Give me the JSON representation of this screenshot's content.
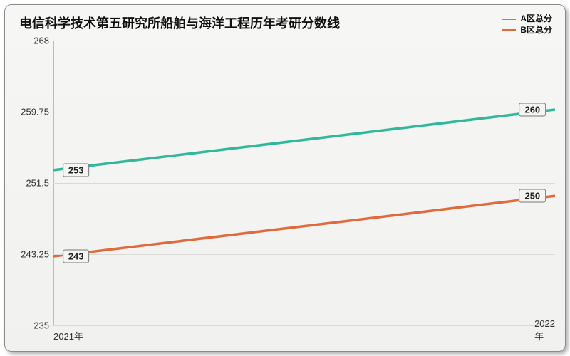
{
  "chart": {
    "type": "line",
    "title": "电信科学技术第五研究所船舶与海洋工程历年考研分数线",
    "title_fontsize": 18,
    "background_gradient_top": "#f6f6f4",
    "background_gradient_bottom": "#f1f1ef",
    "border_color": "#8a8a8a",
    "grid_color": "#d9d9d6",
    "text_color": "#333333",
    "y": {
      "min": 235,
      "max": 268,
      "ticks": [
        235,
        243.25,
        251.5,
        259.75,
        268
      ],
      "fontsize": 13
    },
    "x": {
      "categories": [
        "2021年",
        "2022年"
      ],
      "fontsize": 13
    },
    "legend": {
      "fontsize": 12,
      "items": [
        {
          "label": "A区总分",
          "color": "#2fb89a"
        },
        {
          "label": "B区总分",
          "color": "#e06a3b"
        }
      ]
    },
    "series": [
      {
        "name": "A区总分",
        "color": "#2fb89a",
        "line_width": 1.6,
        "values": [
          253,
          260
        ]
      },
      {
        "name": "B区总分",
        "color": "#e06a3b",
        "line_width": 1.6,
        "values": [
          243,
          250
        ]
      }
    ],
    "value_label": {
      "fontsize": 13,
      "border_color": "#777777",
      "bg": "#f4f4f2"
    }
  }
}
